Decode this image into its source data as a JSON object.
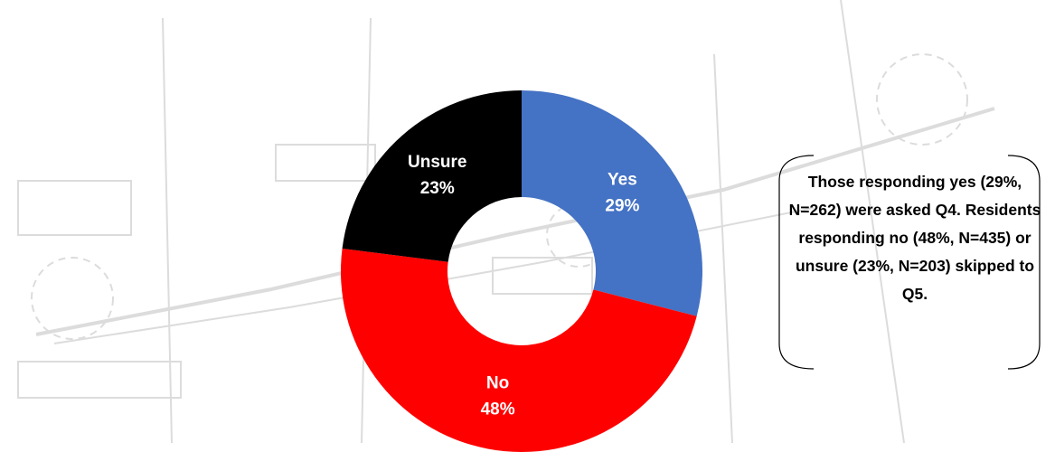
{
  "chart_data": {
    "type": "donut",
    "categories": [
      "Yes",
      "No",
      "Unsure"
    ],
    "values": [
      29,
      48,
      23
    ],
    "value_labels": [
      "29%",
      "48%",
      "23%"
    ],
    "colors": [
      "#4472c4",
      "#ff0000",
      "#000000"
    ],
    "annotation": "Those responding yes (29%, N=262) were asked Q4. Residents responding no (48%, N=435) or unsure (23%, N=203) skipped to Q5."
  }
}
